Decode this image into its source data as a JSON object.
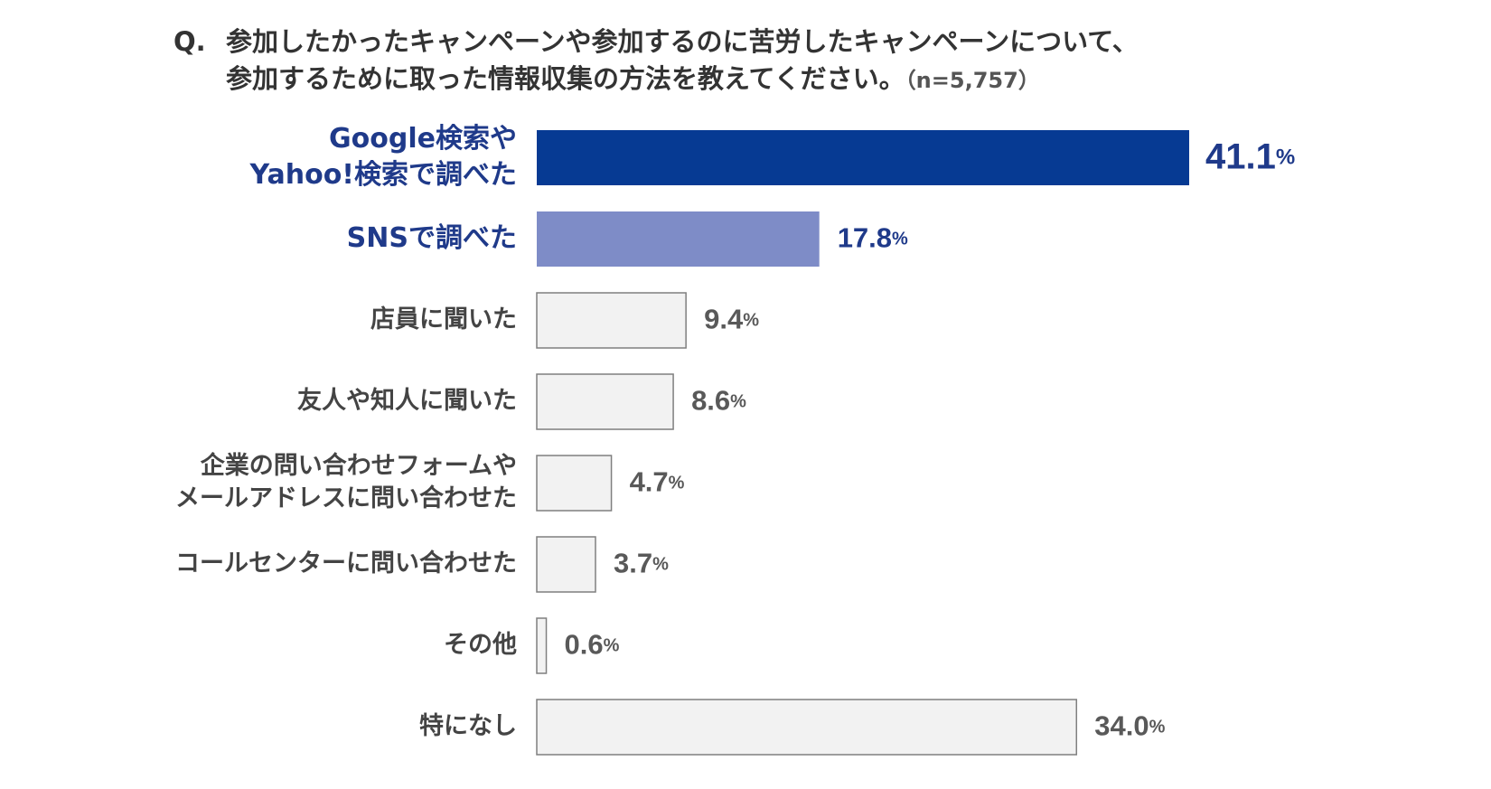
{
  "question": {
    "prefix": "Q.",
    "line1": "参加したかったキャンペーンや参加するのに苦労したキャンペーンについて、",
    "line2": "参加するために取った情報収集の方法を教えてください。",
    "sample": "（n=5,757）"
  },
  "chart_data": {
    "type": "bar",
    "orientation": "horizontal",
    "unit": "%",
    "xlim": [
      0,
      41.1
    ],
    "grid": false,
    "categories": [
      [
        "Google検索や",
        "Yahoo!検索で調べた"
      ],
      [
        "SNSで調べた"
      ],
      [
        "店員に聞いた"
      ],
      [
        "友人や知人に聞いた"
      ],
      [
        "企業の問い合わせフォームや",
        "メールアドレスに問い合わせた"
      ],
      [
        "コールセンターに問い合わせた"
      ],
      [
        "その他"
      ],
      [
        "特になし"
      ]
    ],
    "values": [
      41.1,
      17.8,
      9.4,
      8.6,
      4.7,
      3.7,
      0.6,
      34.0
    ],
    "value_labels": [
      "41.1",
      "17.8",
      "9.4",
      "8.6",
      "4.7",
      "3.7",
      "0.6",
      "34.0"
    ],
    "colors": {
      "top1_fill": "#063a93",
      "top2_fill": "#7e8cc7",
      "other_fill": "#f2f2f2",
      "other_stroke": "#7f7f7f",
      "highlight_text": "#1f3a8a",
      "normal_text": "#444444",
      "value_text": "#595959"
    }
  }
}
